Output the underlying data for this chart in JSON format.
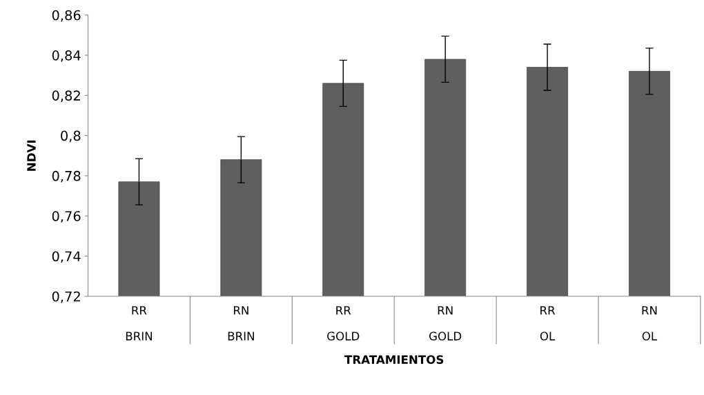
{
  "chart_data": {
    "type": "bar",
    "xlabel": "TRATAMIENTOS",
    "ylabel": "NDVI",
    "categories": [
      "RR\n\nBRIN",
      "RN\n\nBRIN",
      "RR\n\nGOLD",
      "RN\n\nGOLD",
      "RR\n\nOL",
      "RN\n\nOL"
    ],
    "values": [
      0.777,
      0.788,
      0.826,
      0.838,
      0.834,
      0.832
    ],
    "errors": [
      0.0115,
      0.0115,
      0.0115,
      0.0115,
      0.0115,
      0.0115
    ],
    "color": "#5f5f5f",
    "ylim": [
      0.72,
      0.86
    ],
    "yticks": [
      {
        "value": 0.72,
        "label": "0,72"
      },
      {
        "value": 0.74,
        "label": "0,74"
      },
      {
        "value": 0.76,
        "label": "0,76"
      },
      {
        "value": 0.78,
        "label": "0,78"
      },
      {
        "value": 0.8,
        "label": "0,8"
      },
      {
        "value": 0.82,
        "label": "0,82"
      },
      {
        "value": 0.84,
        "label": "0,84"
      },
      {
        "value": 0.86,
        "label": "0,86"
      }
    ],
    "grid": false
  }
}
